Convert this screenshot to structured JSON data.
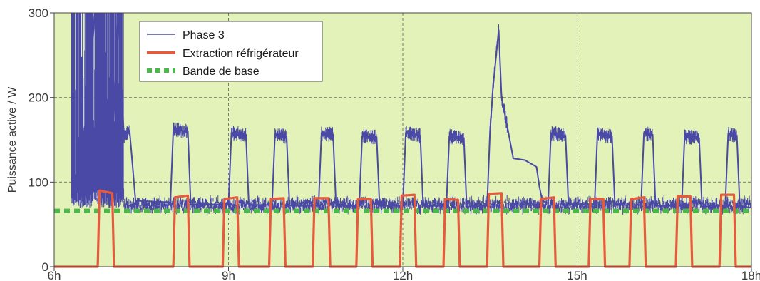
{
  "chart_data": {
    "type": "line",
    "title": "",
    "xlabel": "",
    "ylabel": "Puissance active / W",
    "xlim": [
      6,
      18
    ],
    "ylim": [
      0,
      300
    ],
    "x_ticks": [
      {
        "value": 6,
        "label": "6h"
      },
      {
        "value": 9,
        "label": "9h"
      },
      {
        "value": 12,
        "label": "12h"
      },
      {
        "value": 15,
        "label": "15h"
      },
      {
        "value": 18,
        "label": "18h"
      }
    ],
    "y_ticks": [
      {
        "value": 0,
        "label": "0"
      },
      {
        "value": 100,
        "label": "100"
      },
      {
        "value": 200,
        "label": "200"
      },
      {
        "value": 300,
        "label": "300"
      }
    ],
    "grid": true,
    "legend": {
      "placement": "top-left"
    },
    "background_color": "#e3f2b8",
    "series": [
      {
        "name": "Phase 3",
        "color": "#4a4aa6",
        "style": "thin-line",
        "baseline": 73,
        "noisy_band_until": 7.2,
        "noisy_band_range": [
          70,
          300
        ],
        "points": [
          [
            6.45,
            70
          ],
          [
            6.7,
            300
          ],
          [
            6.95,
            70
          ],
          [
            7.1,
            300
          ],
          [
            7.2,
            155
          ],
          [
            7.3,
            160
          ],
          [
            7.4,
            78
          ],
          [
            8.0,
            76
          ],
          [
            8.05,
            162
          ],
          [
            8.3,
            160
          ],
          [
            8.35,
            74
          ],
          [
            9.0,
            73
          ],
          [
            9.05,
            158
          ],
          [
            9.3,
            156
          ],
          [
            9.35,
            73
          ],
          [
            9.75,
            73
          ],
          [
            9.8,
            156
          ],
          [
            10.0,
            154
          ],
          [
            10.05,
            72
          ],
          [
            10.55,
            72
          ],
          [
            10.6,
            158
          ],
          [
            10.8,
            156
          ],
          [
            10.85,
            72
          ],
          [
            11.25,
            72
          ],
          [
            11.3,
            154
          ],
          [
            11.55,
            153
          ],
          [
            11.6,
            72
          ],
          [
            12.0,
            72
          ],
          [
            12.05,
            158
          ],
          [
            12.3,
            155
          ],
          [
            12.35,
            72
          ],
          [
            12.75,
            72
          ],
          [
            12.8,
            154
          ],
          [
            13.05,
            152
          ],
          [
            13.1,
            71
          ],
          [
            13.45,
            72
          ],
          [
            13.5,
            160
          ],
          [
            13.55,
            210
          ],
          [
            13.65,
            280
          ],
          [
            13.7,
            200
          ],
          [
            13.8,
            165
          ],
          [
            13.9,
            128
          ],
          [
            14.1,
            126
          ],
          [
            14.3,
            118
          ],
          [
            14.35,
            95
          ],
          [
            14.4,
            78
          ],
          [
            14.5,
            75
          ],
          [
            14.55,
            158
          ],
          [
            14.8,
            155
          ],
          [
            14.85,
            74
          ],
          [
            15.3,
            74
          ],
          [
            15.35,
            157
          ],
          [
            15.6,
            154
          ],
          [
            15.65,
            73
          ],
          [
            16.1,
            73
          ],
          [
            16.15,
            158
          ],
          [
            16.3,
            156
          ],
          [
            16.35,
            72
          ],
          [
            16.8,
            72
          ],
          [
            16.85,
            154
          ],
          [
            17.1,
            152
          ],
          [
            17.15,
            71
          ],
          [
            17.55,
            72
          ],
          [
            17.6,
            157
          ],
          [
            17.75,
            155
          ],
          [
            17.8,
            71
          ],
          [
            18.0,
            70
          ]
        ]
      },
      {
        "name": "Extraction réfrigérateur",
        "color": "#e85a3c",
        "style": "thick-line",
        "points": [
          [
            6.0,
            0
          ],
          [
            6.75,
            0
          ],
          [
            6.78,
            90
          ],
          [
            7.0,
            87
          ],
          [
            7.03,
            0
          ],
          [
            8.05,
            0
          ],
          [
            8.08,
            82
          ],
          [
            8.3,
            84
          ],
          [
            8.33,
            0
          ],
          [
            8.9,
            0
          ],
          [
            8.93,
            80
          ],
          [
            9.15,
            82
          ],
          [
            9.18,
            0
          ],
          [
            9.7,
            0
          ],
          [
            9.73,
            80
          ],
          [
            9.95,
            81
          ],
          [
            9.98,
            0
          ],
          [
            10.45,
            0
          ],
          [
            10.48,
            81
          ],
          [
            10.72,
            81
          ],
          [
            10.75,
            0
          ],
          [
            11.2,
            0
          ],
          [
            11.23,
            80
          ],
          [
            11.45,
            80
          ],
          [
            11.48,
            0
          ],
          [
            11.95,
            0
          ],
          [
            11.98,
            84
          ],
          [
            12.2,
            85
          ],
          [
            12.23,
            0
          ],
          [
            12.7,
            0
          ],
          [
            12.73,
            80
          ],
          [
            12.95,
            79
          ],
          [
            12.98,
            0
          ],
          [
            13.45,
            0
          ],
          [
            13.48,
            86
          ],
          [
            13.7,
            87
          ],
          [
            13.73,
            0
          ],
          [
            14.35,
            0
          ],
          [
            14.38,
            80
          ],
          [
            14.6,
            82
          ],
          [
            14.63,
            0
          ],
          [
            15.2,
            0
          ],
          [
            15.23,
            80
          ],
          [
            15.45,
            80
          ],
          [
            15.48,
            0
          ],
          [
            15.9,
            0
          ],
          [
            15.93,
            80
          ],
          [
            16.15,
            82
          ],
          [
            16.18,
            0
          ],
          [
            16.7,
            0
          ],
          [
            16.73,
            83
          ],
          [
            16.95,
            83
          ],
          [
            16.98,
            0
          ],
          [
            17.45,
            0
          ],
          [
            17.48,
            85
          ],
          [
            17.7,
            85
          ],
          [
            17.73,
            0
          ],
          [
            18.0,
            0
          ]
        ]
      },
      {
        "name": "Bande de base",
        "color": "#4cb84c",
        "style": "dashed-thick",
        "value": 66
      }
    ]
  }
}
